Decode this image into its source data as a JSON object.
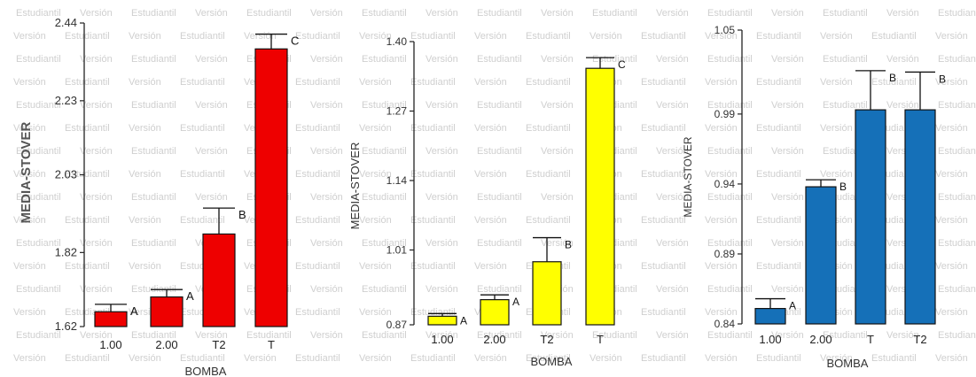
{
  "watermark": {
    "words": [
      "Versión",
      "Estudiantil"
    ],
    "color": "#cfcfcf"
  },
  "chart_data": [
    {
      "type": "bar",
      "categories": [
        "1.00",
        "2.00",
        "T2",
        "T"
      ],
      "values": [
        1.66,
        1.7,
        1.87,
        2.37
      ],
      "error_upper": [
        1.68,
        1.72,
        1.94,
        2.41
      ],
      "letters": [
        "A",
        "A",
        "B",
        "C"
      ],
      "ylim": [
        1.62,
        2.44
      ],
      "yticks": [
        "1.62",
        "1.82",
        "2.03",
        "2.23",
        "2.44"
      ],
      "xlabel": "BOMBA",
      "ylabel": "MEDIA-STOVER",
      "bar_color": "#ee0000"
    },
    {
      "type": "bar",
      "categories": [
        "1.00",
        "2.00",
        "T2",
        "T"
      ],
      "values": [
        0.886,
        0.917,
        0.988,
        1.35
      ],
      "error_upper": [
        0.891,
        0.926,
        1.033,
        1.37
      ],
      "letters": [
        "A",
        "A",
        "B",
        "C"
      ],
      "ylim": [
        0.87,
        1.4
      ],
      "yticks": [
        "0.87",
        "1.01",
        "1.14",
        "1.27",
        "1.40"
      ],
      "xlabel": "BOMBA",
      "ylabel": "MEDIA-STOVER",
      "bar_color": "#ffff00"
    },
    {
      "type": "bar",
      "categories": [
        "1.00",
        "2.00",
        "T",
        "T2"
      ],
      "values": [
        0.851,
        0.938,
        0.993,
        0.993
      ],
      "error_upper": [
        0.858,
        0.943,
        1.021,
        1.02
      ],
      "letters": [
        "A",
        "B",
        "B",
        "B"
      ],
      "ylim": [
        0.84,
        1.05
      ],
      "yticks": [
        "0.84",
        "0.89",
        "0.94",
        "0.99",
        "1.05"
      ],
      "xlabel": "BOMBA",
      "ylabel": "MEDIA-STOVER",
      "bar_color": "#1570b8"
    }
  ]
}
